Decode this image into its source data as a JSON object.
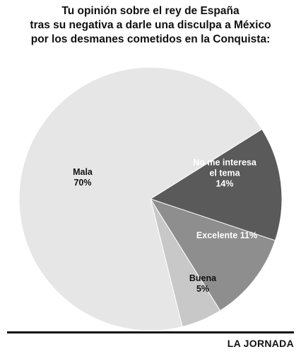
{
  "title_lines": [
    "Tu opinión sobre el rey de España",
    "tras su negativa a darle una disculpa a México",
    "por los desmanes cometidos en la Conquista:"
  ],
  "chart_data": {
    "type": "pie",
    "slices": [
      {
        "label_lines": [
          "No me interesa",
          "el tema",
          "14%"
        ],
        "value": 14,
        "color": "#5a5a5a",
        "text_color": "#ffffff"
      },
      {
        "label_lines": [
          "Excelente 11%"
        ],
        "value": 11,
        "color": "#8e8e8e",
        "text_color": "#ffffff"
      },
      {
        "label_lines": [
          "Buena",
          "5%"
        ],
        "value": 5,
        "color": "#c8c8c8",
        "text_color": "#111111"
      },
      {
        "label_lines": [
          "Mala",
          "70%"
        ],
        "value": 70,
        "color": "#e6e6e6",
        "text_color": "#111111"
      }
    ]
  },
  "source": "LA JORNADA"
}
